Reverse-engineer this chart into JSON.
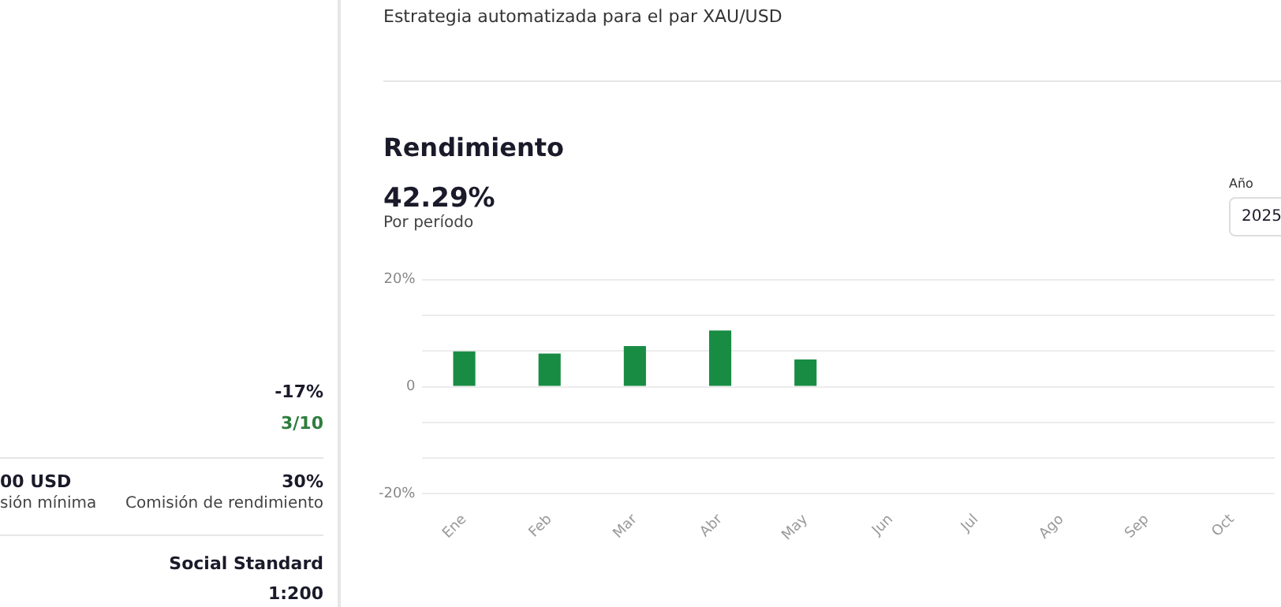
{
  "chart_data": {
    "type": "bar",
    "title": "Rendimiento",
    "subtitle": "Por período",
    "annotations": [
      "Estrategia automatizada para el par XAU/USD",
      "42.29%",
      "Año",
      "2025",
      "-17%",
      "3/10",
      "00 USD",
      "sión mínima",
      "30%",
      "Comisión de rendimiento",
      "Social Standard",
      "1:200"
    ],
    "categories": [
      "Ene",
      "Feb",
      "Mar",
      "Abr",
      "May",
      "Jun",
      "Jul",
      "Ago",
      "Sep",
      "Oct"
    ],
    "values": [
      6.6,
      6.2,
      7.6,
      10.5,
      5.1,
      null,
      null,
      null,
      null,
      null
    ],
    "color": "#198c44",
    "ylim": [
      -20,
      20
    ],
    "yticks": [
      {
        "value": -20,
        "label": "-20%"
      },
      {
        "value": -13.33,
        "label": null
      },
      {
        "value": -6.67,
        "label": null
      },
      0,
      {
        "value": 6.67,
        "label": null
      },
      {
        "value": 13.33,
        "label": null
      },
      {
        "value": 20,
        "label": "20%"
      }
    ],
    "grid": "y",
    "legend": false
  }
}
